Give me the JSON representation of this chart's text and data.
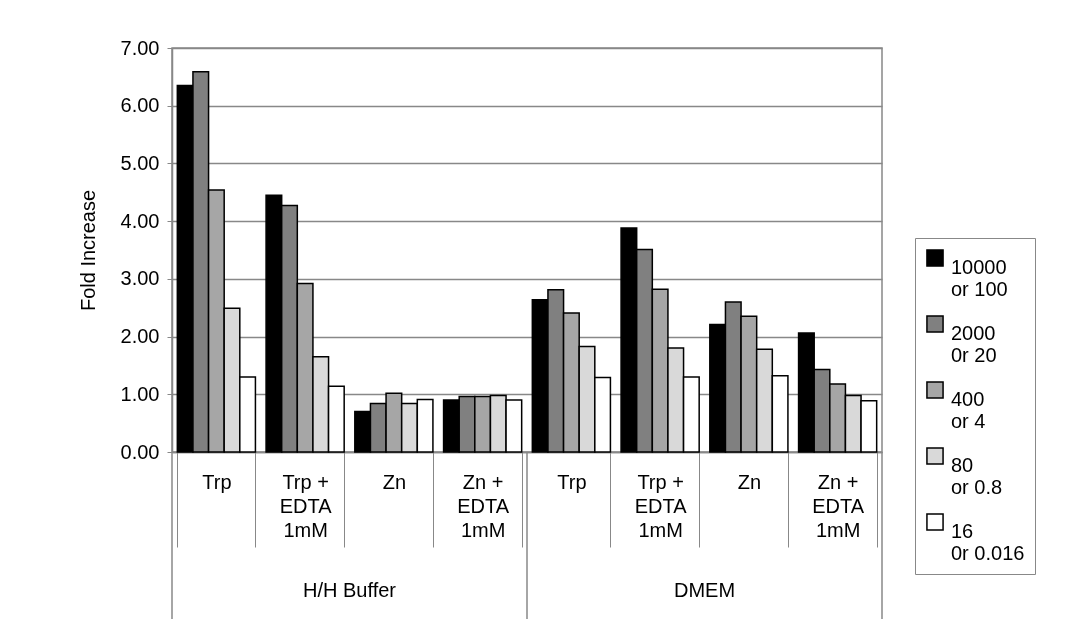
{
  "chart_data": {
    "type": "bar",
    "ylabel": "Fold Increase",
    "categories": [
      "Trp",
      "Trp + EDTA 1mM",
      "Zn",
      "Zn + EDTA 1mM",
      "Trp",
      "Trp + EDTA 1mM",
      "Zn",
      "Zn + EDTA 1mM"
    ],
    "annotations": [
      "H/H Buffer",
      "DMEM"
    ],
    "series": [
      {
        "name": "10000 or 100",
        "color": "#000000",
        "values": [
          6.35,
          4.45,
          0.7,
          0.9,
          2.64,
          3.88,
          2.21,
          2.06
        ]
      },
      {
        "name": "2000 0r 20",
        "color": "#808080",
        "values": [
          6.59,
          4.27,
          0.84,
          0.96,
          2.81,
          3.51,
          2.6,
          1.43
        ]
      },
      {
        "name": "400 or 4",
        "color": "#a6a6a6",
        "values": [
          4.54,
          2.92,
          1.02,
          0.96,
          2.41,
          2.82,
          2.35,
          1.18
        ]
      },
      {
        "name": "80 or 0.8",
        "color": "#d9d9d9",
        "values": [
          2.49,
          1.65,
          0.84,
          0.98,
          1.83,
          1.8,
          1.78,
          0.98
        ]
      },
      {
        "name": "16 0r 0.016",
        "color": "#ffffff",
        "values": [
          1.3,
          1.14,
          0.91,
          0.9,
          1.29,
          1.3,
          1.32,
          0.89
        ]
      }
    ],
    "ylim": [
      0,
      7
    ],
    "yticks": [
      {
        "value": 0,
        "label": "0.00"
      },
      {
        "value": 1,
        "label": "1.00"
      },
      {
        "value": 2,
        "label": "2.00"
      },
      {
        "value": 3,
        "label": "3.00"
      },
      {
        "value": 4,
        "label": "4.00"
      },
      {
        "value": 5,
        "label": "5.00"
      },
      {
        "value": 6,
        "label": "6.00"
      },
      {
        "value": 7,
        "label": "7.00"
      }
    ],
    "grid": "y",
    "legend": "right"
  }
}
